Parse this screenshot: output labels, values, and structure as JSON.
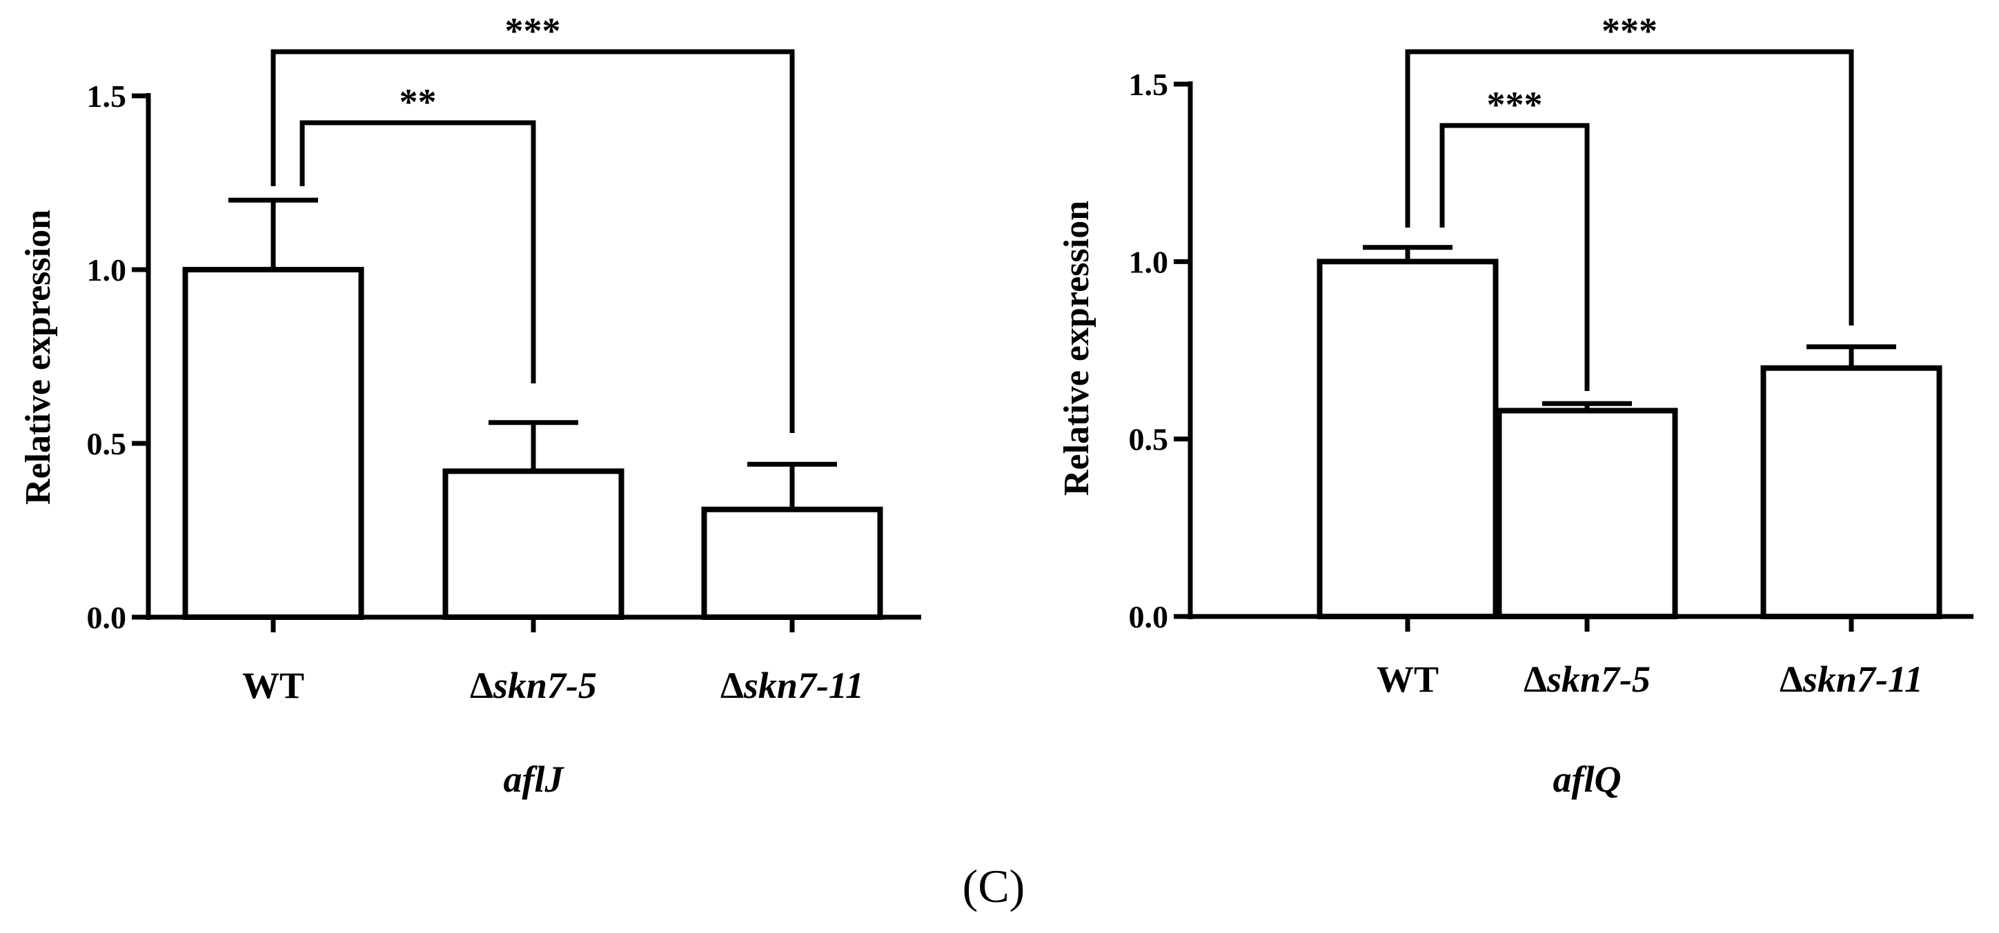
{
  "figure_label": "(C)",
  "chart_data": [
    {
      "type": "bar",
      "ylabel": "Relative expression",
      "xlabel": "aflJ",
      "categories": [
        {
          "prefix": "",
          "name": "WT"
        },
        {
          "prefix": "Δ",
          "name": "skn7-5"
        },
        {
          "prefix": "Δ",
          "name": "skn7-11"
        }
      ],
      "values": [
        1.0,
        0.42,
        0.31
      ],
      "errors": [
        0.2,
        0.14,
        0.13
      ],
      "ylim": [
        0,
        1.5
      ],
      "yticks": [
        "0.0",
        "0.5",
        "1.0",
        "1.5"
      ],
      "significance": [
        {
          "from": 0,
          "to": 1,
          "label": "**"
        },
        {
          "from": 0,
          "to": 2,
          "label": "***"
        }
      ]
    },
    {
      "type": "bar",
      "ylabel": "Relative expression",
      "xlabel": "aflQ",
      "categories": [
        {
          "prefix": "",
          "name": "WT"
        },
        {
          "prefix": "Δ",
          "name": "skn7-5"
        },
        {
          "prefix": "Δ",
          "name": "skn7-11"
        }
      ],
      "values": [
        1.0,
        0.58,
        0.7
      ],
      "errors": [
        0.04,
        0.02,
        0.06
      ],
      "ylim": [
        0,
        1.5
      ],
      "yticks": [
        "0.0",
        "0.5",
        "1.0",
        "1.5"
      ],
      "significance": [
        {
          "from": 0,
          "to": 1,
          "label": "***"
        },
        {
          "from": 0,
          "to": 2,
          "label": "***"
        }
      ]
    }
  ]
}
